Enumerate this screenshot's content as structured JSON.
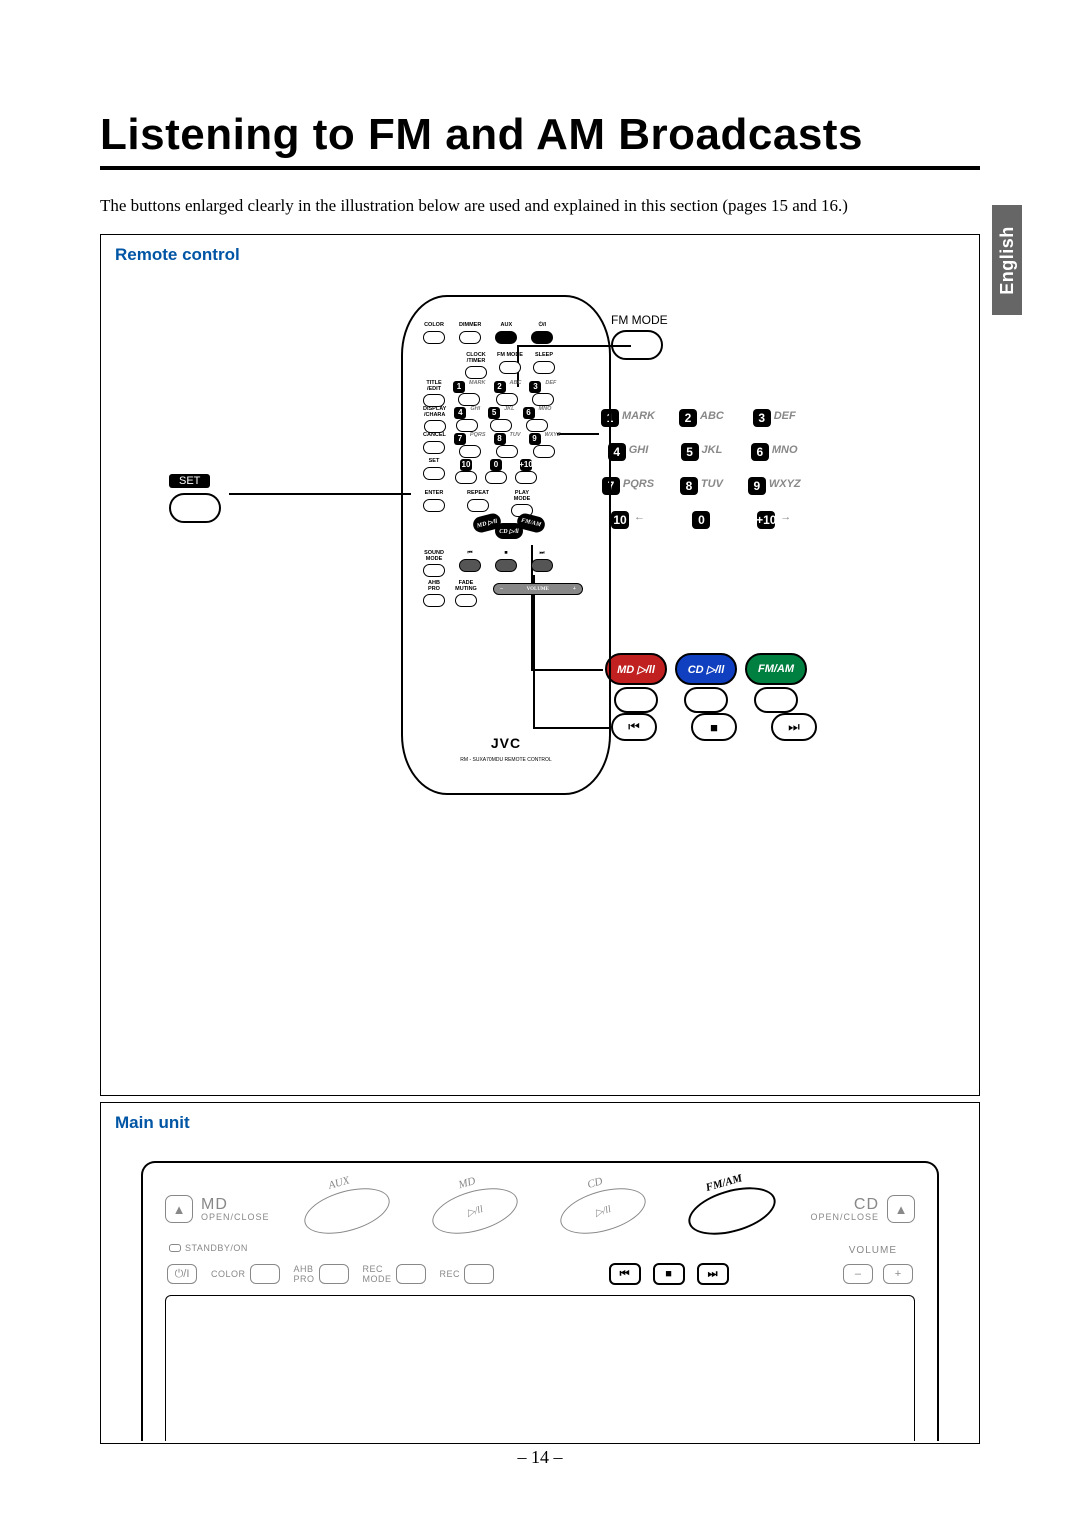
{
  "title": "Listening to FM and AM Broadcasts",
  "intro": "The buttons enlarged clearly in the illustration below are used and explained in this section (pages 15 and 16.)",
  "language_tab": "English",
  "page_number": "– 14 –",
  "colors": {
    "accent": "#0055a5",
    "md": "#c02020",
    "cd": "#1040c0",
    "fmam": "#008040",
    "muted": "#888888"
  },
  "sections": {
    "remote": {
      "label": "Remote control"
    },
    "main": {
      "label": "Main unit"
    }
  },
  "remote": {
    "brand": "JVC",
    "model": "RM - SUXA70MDU REMOTE CONTROL",
    "rows": {
      "top": [
        "COLOR",
        "DIMMER",
        "AUX",
        "⏻/I"
      ],
      "r2": [
        "CLOCK\n/TIMER",
        "FM MODE",
        "SLEEP"
      ],
      "r3_left": "TITLE\n/EDIT",
      "r4_left": "DISPLAY\n/CHARA",
      "r5_left": "CANCEL",
      "keypad": [
        {
          "n": "1",
          "l": "MARK"
        },
        {
          "n": "2",
          "l": "ABC"
        },
        {
          "n": "3",
          "l": "DEF"
        },
        {
          "n": "4",
          "l": "GHI"
        },
        {
          "n": "5",
          "l": "JKL"
        },
        {
          "n": "6",
          "l": "MNO"
        },
        {
          "n": "7",
          "l": "PQRS"
        },
        {
          "n": "8",
          "l": "TUV"
        },
        {
          "n": "9",
          "l": "WXYZ"
        },
        {
          "n": "10",
          "l": ""
        },
        {
          "n": "0",
          "l": ""
        },
        {
          "n": "+10",
          "l": ""
        }
      ],
      "r6": [
        "SET"
      ],
      "r7": [
        "ENTER",
        "REPEAT",
        "PLAY\nMODE"
      ],
      "sources": [
        "MD ▷/ll",
        "CD ▷/ll",
        "FM/AM"
      ],
      "r8": [
        "SOUND\nMODE",
        "⏮",
        "■",
        "⏭"
      ],
      "r9": [
        "AHB\nPRO",
        "FADE\nMUTING"
      ],
      "volume": {
        "minus": "–",
        "label": "VOLUME",
        "plus": "+"
      }
    }
  },
  "callouts": {
    "fm_mode": "FM MODE",
    "set": "SET",
    "keypad": [
      {
        "n": "1",
        "l": "MARK"
      },
      {
        "n": "2",
        "l": "ABC"
      },
      {
        "n": "3",
        "l": "DEF"
      },
      {
        "n": "4",
        "l": "GHI"
      },
      {
        "n": "5",
        "l": "JKL"
      },
      {
        "n": "6",
        "l": "MNO"
      },
      {
        "n": "7",
        "l": "PQRS"
      },
      {
        "n": "8",
        "l": "TUV"
      },
      {
        "n": "9",
        "l": "WXYZ"
      }
    ],
    "plus_row": [
      {
        "n": "10",
        "arrow": "←"
      },
      {
        "n": "0",
        "arrow": ""
      },
      {
        "n": "+10",
        "arrow": "→"
      }
    ],
    "sources": [
      {
        "t": "MD ▷/ll",
        "cls": "src-md"
      },
      {
        "t": "CD ▷/ll",
        "cls": "src-cd"
      },
      {
        "t": "FM/AM",
        "cls": "src-fm"
      }
    ],
    "transport": [
      "⏮",
      "■",
      "⏭"
    ]
  },
  "main_unit": {
    "left_oc": {
      "title": "MD",
      "sub": "OPEN/CLOSE"
    },
    "right_oc": {
      "title": "CD",
      "sub": "OPEN/CLOSE"
    },
    "sources": [
      {
        "t": "AUX",
        "big": false,
        "in": ""
      },
      {
        "t": "MD",
        "big": false,
        "in": "▷/ll"
      },
      {
        "t": "CD",
        "big": false,
        "in": "▷/ll"
      },
      {
        "t": "FM/AM",
        "big": true,
        "in": ""
      }
    ],
    "standby": "STANDBY/ON",
    "row2_left": [
      {
        "l": "",
        "b": "⏻/I"
      },
      {
        "l": "COLOR",
        "b": ""
      },
      {
        "l": "AHB\nPRO",
        "b": ""
      },
      {
        "l": "REC\nMODE",
        "b": ""
      },
      {
        "l": "REC",
        "b": ""
      }
    ],
    "row2_center": [
      "⏮",
      "■",
      "⏭"
    ],
    "volume_label": "VOLUME",
    "vol_minus": "–",
    "vol_plus": "+"
  }
}
